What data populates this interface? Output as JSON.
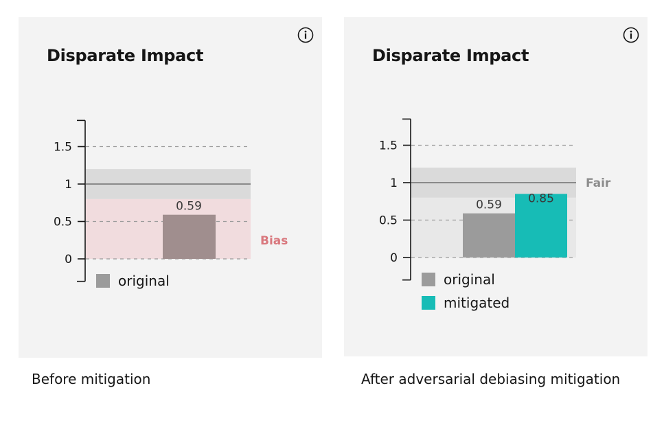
{
  "panels": [
    {
      "title": "Disparate Impact",
      "caption": "Before mitigation"
    },
    {
      "title": "Disparate Impact",
      "caption": "After adversarial debiasing mitigation"
    }
  ],
  "colors": {
    "original": "#9b9b9b",
    "original_biased": "#a08e8e",
    "mitigated": "#17bcb6",
    "bias_band": "#f1dcde",
    "bias_label": "#d9787e",
    "fair_band": "#dadada",
    "fair_label": "#8c8c8c",
    "neutral_band": "#e8e8e8"
  },
  "chart_data": [
    {
      "type": "bar",
      "title": "Disparate Impact",
      "yticks": [
        "0",
        "0.5",
        "1",
        "1.5"
      ],
      "ylim": [
        -0.3,
        1.85
      ],
      "fair_range": [
        0.8,
        1.2
      ],
      "series": [
        {
          "name": "original",
          "values": [
            0.59
          ],
          "labels": [
            "0.59"
          ]
        }
      ],
      "band_label": "Bias",
      "legend": [
        "original"
      ]
    },
    {
      "type": "bar",
      "title": "Disparate Impact",
      "yticks": [
        "0",
        "0.5",
        "1",
        "1.5"
      ],
      "ylim": [
        -0.3,
        1.85
      ],
      "fair_range": [
        0.8,
        1.2
      ],
      "series": [
        {
          "name": "original",
          "values": [
            0.59
          ],
          "labels": [
            "0.59"
          ]
        },
        {
          "name": "mitigated",
          "values": [
            0.85
          ],
          "labels": [
            "0.85"
          ]
        }
      ],
      "band_label": "Fair",
      "legend": [
        "original",
        "mitigated"
      ]
    }
  ]
}
